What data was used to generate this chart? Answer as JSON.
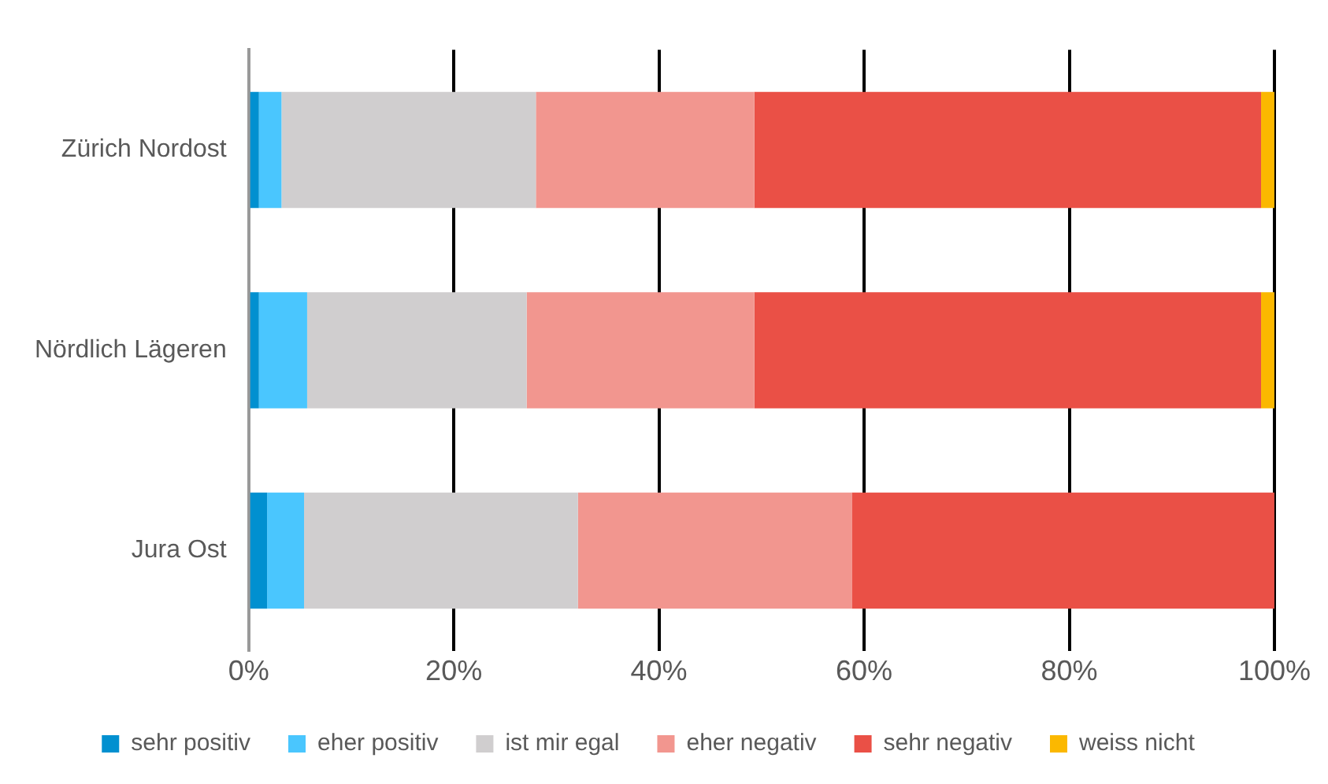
{
  "chart_data": {
    "type": "bar",
    "orientation": "horizontal",
    "stacked": true,
    "categories": [
      "Zürich Nordost",
      "Nördlich Lägeren",
      "Jura Ost"
    ],
    "series": [
      {
        "name": "sehr positiv",
        "color": "#0190d0",
        "values": [
          1.0,
          1.0,
          1.8
        ]
      },
      {
        "name": "eher positiv",
        "color": "#4ac6fe",
        "values": [
          2.2,
          4.7,
          3.6
        ]
      },
      {
        "name": "ist mir egal",
        "color": "#d0cecf",
        "values": [
          24.8,
          21.4,
          26.7
        ]
      },
      {
        "name": "eher negativ",
        "color": "#f2968f",
        "values": [
          21.3,
          22.2,
          26.7
        ]
      },
      {
        "name": "sehr negativ",
        "color": "#ea5046",
        "values": [
          49.4,
          49.4,
          41.2
        ]
      },
      {
        "name": "weiss nicht",
        "color": "#fbb800",
        "values": [
          1.3,
          1.3,
          0
        ]
      }
    ],
    "xlim": [
      0,
      100
    ],
    "xticks": [
      {
        "value": 0,
        "label": "0%"
      },
      {
        "value": 20,
        "label": "20%"
      },
      {
        "value": 40,
        "label": "40%"
      },
      {
        "value": 60,
        "label": "60%"
      },
      {
        "value": 80,
        "label": "80%"
      },
      {
        "value": 100,
        "label": "100%"
      }
    ],
    "grid": "x",
    "legend": "bottom"
  }
}
